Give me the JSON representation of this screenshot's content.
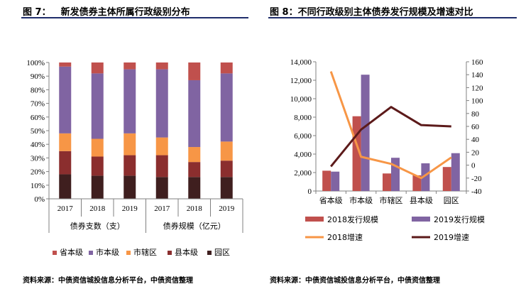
{
  "left_figure": {
    "title_prefix": "图 7：",
    "title_text": "新发债券主体所属行政级别分布",
    "source": "资料来源：中债资信城投信息分析平台，中债资信整理"
  },
  "right_figure": {
    "title_prefix": "图 8：",
    "title_text": "不同行政级别主体债券发行规模及增速对比",
    "source": "资料来源：中债资信城投信息分析平台，中债资信整理"
  },
  "chart_data": [
    {
      "type": "bar",
      "stacked": true,
      "normalized": true,
      "categories": [
        "2017",
        "2018",
        "2019",
        "2017",
        "2018",
        "2019"
      ],
      "groups": [
        {
          "label": "债券支数（支）",
          "categories": [
            "2017",
            "2018",
            "2019"
          ]
        },
        {
          "label": "债券规模（亿元）",
          "categories": [
            "2017",
            "2018",
            "2019"
          ]
        }
      ],
      "series": [
        {
          "name": "园区",
          "color": "#3f1f1f",
          "values": [
            18,
            17,
            17,
            16,
            16,
            16
          ]
        },
        {
          "name": "县本级",
          "color": "#8b2e2e",
          "values": [
            17,
            14,
            15,
            16,
            11,
            12
          ]
        },
        {
          "name": "市辖区",
          "color": "#f79646",
          "values": [
            13,
            13,
            16,
            13,
            11,
            14
          ]
        },
        {
          "name": "市本级",
          "color": "#8064a2",
          "values": [
            49,
            48,
            47,
            50,
            49,
            50
          ]
        },
        {
          "name": "省本级",
          "color": "#c0504d",
          "values": [
            3,
            8,
            5,
            5,
            13,
            8
          ]
        }
      ],
      "legend_order": [
        "省本级",
        "市本级",
        "市辖区",
        "县本级",
        "园区"
      ],
      "yticks": [
        "0%",
        "10%",
        "20%",
        "30%",
        "40%",
        "50%",
        "60%",
        "70%",
        "80%",
        "90%",
        "100%"
      ],
      "ylim": [
        0,
        100
      ],
      "legend_position": "bottom",
      "grid": false
    },
    {
      "type": "bar",
      "combo": "bar+line",
      "categories": [
        "省本级",
        "市本级",
        "市辖区",
        "县本级",
        "园区"
      ],
      "series": [
        {
          "name": "2018发行规模",
          "type": "bar",
          "axis": "left",
          "color": "#c0504d",
          "values": [
            2200,
            8100,
            1900,
            1700,
            2600
          ]
        },
        {
          "name": "2019发行规模",
          "type": "bar",
          "axis": "left",
          "color": "#8064a2",
          "values": [
            2100,
            12600,
            3600,
            3000,
            4100
          ]
        },
        {
          "name": "2018增速",
          "type": "line",
          "axis": "right",
          "color": "#f79646",
          "values": [
            145,
            13,
            2,
            -20,
            12
          ]
        },
        {
          "name": "2019增速",
          "type": "line",
          "axis": "right",
          "color": "#5c1a1a",
          "values": [
            -2,
            55,
            90,
            62,
            60
          ]
        }
      ],
      "yticks_left": [
        "0",
        "2,000",
        "4,000",
        "6,000",
        "8,000",
        "10,000",
        "12,000",
        "14,000"
      ],
      "yticks_right": [
        "-40",
        "-20",
        "0",
        "20",
        "40",
        "60",
        "80",
        "100",
        "120",
        "140",
        "160"
      ],
      "ylim_left": [
        0,
        14000
      ],
      "ylim_right": [
        -40,
        160
      ],
      "legend_position": "bottom",
      "grid": false
    }
  ]
}
